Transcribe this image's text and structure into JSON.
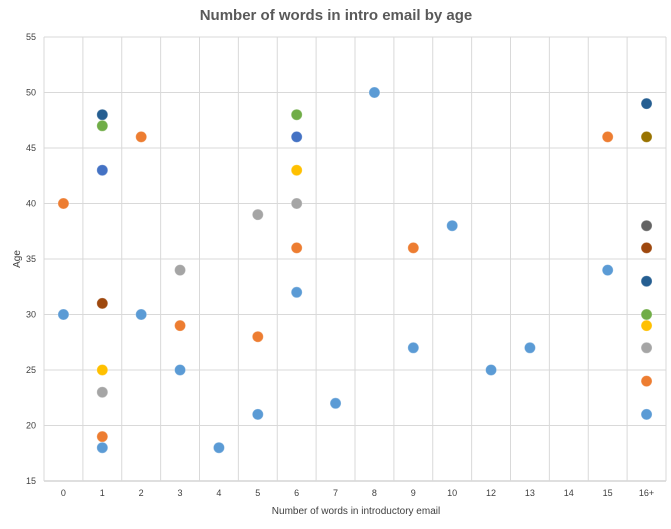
{
  "chart_data": {
    "type": "scatter",
    "title": "Number of words in intro email by age",
    "xlabel": "Number of words in introductory email",
    "ylabel": "Age",
    "categories": [
      "0",
      "1",
      "2",
      "3",
      "4",
      "5",
      "6",
      "7",
      "8",
      "9",
      "10",
      "12",
      "13",
      "14",
      "15",
      "16+"
    ],
    "ylim": [
      15,
      55
    ],
    "yticks": [
      15,
      20,
      25,
      30,
      35,
      40,
      45,
      50,
      55
    ],
    "grid": "on (vertical and horizontal)",
    "legend": "none",
    "colors": {
      "blue_light": "#5b9bd5",
      "orange": "#ed7d31",
      "gray": "#a5a5a5",
      "gold": "#ffc000",
      "blue": "#4472c4",
      "green": "#70ad47",
      "navy": "#255e91",
      "brown": "#9e480e",
      "dark_gray": "#636363",
      "olive": "#997300"
    },
    "points": [
      {
        "x": "0",
        "y": 40,
        "color": "orange"
      },
      {
        "x": "0",
        "y": 30,
        "color": "blue_light"
      },
      {
        "x": "1",
        "y": 48,
        "color": "navy"
      },
      {
        "x": "1",
        "y": 47,
        "color": "green"
      },
      {
        "x": "1",
        "y": 43,
        "color": "blue"
      },
      {
        "x": "1",
        "y": 31,
        "color": "brown"
      },
      {
        "x": "1",
        "y": 25,
        "color": "gold"
      },
      {
        "x": "1",
        "y": 23,
        "color": "gray"
      },
      {
        "x": "1",
        "y": 19,
        "color": "orange"
      },
      {
        "x": "1",
        "y": 18,
        "color": "blue_light"
      },
      {
        "x": "2",
        "y": 46,
        "color": "orange"
      },
      {
        "x": "2",
        "y": 30,
        "color": "blue_light"
      },
      {
        "x": "3",
        "y": 34,
        "color": "gray"
      },
      {
        "x": "3",
        "y": 29,
        "color": "orange"
      },
      {
        "x": "3",
        "y": 25,
        "color": "blue_light"
      },
      {
        "x": "4",
        "y": 18,
        "color": "blue_light"
      },
      {
        "x": "5",
        "y": 39,
        "color": "gray"
      },
      {
        "x": "5",
        "y": 28,
        "color": "orange"
      },
      {
        "x": "5",
        "y": 21,
        "color": "blue_light"
      },
      {
        "x": "6",
        "y": 48,
        "color": "green"
      },
      {
        "x": "6",
        "y": 46,
        "color": "blue"
      },
      {
        "x": "6",
        "y": 43,
        "color": "gold"
      },
      {
        "x": "6",
        "y": 40,
        "color": "gray"
      },
      {
        "x": "6",
        "y": 36,
        "color": "orange"
      },
      {
        "x": "6",
        "y": 32,
        "color": "blue_light"
      },
      {
        "x": "7",
        "y": 22,
        "color": "blue_light"
      },
      {
        "x": "8",
        "y": 50,
        "color": "blue_light"
      },
      {
        "x": "9",
        "y": 36,
        "color": "orange"
      },
      {
        "x": "9",
        "y": 27,
        "color": "blue_light"
      },
      {
        "x": "10",
        "y": 38,
        "color": "blue_light"
      },
      {
        "x": "12",
        "y": 25,
        "color": "blue_light"
      },
      {
        "x": "13",
        "y": 27,
        "color": "blue_light"
      },
      {
        "x": "15",
        "y": 46,
        "color": "orange"
      },
      {
        "x": "15",
        "y": 34,
        "color": "blue_light"
      },
      {
        "x": "16+",
        "y": 49,
        "color": "navy"
      },
      {
        "x": "16+",
        "y": 46,
        "color": "olive"
      },
      {
        "x": "16+",
        "y": 38,
        "color": "dark_gray"
      },
      {
        "x": "16+",
        "y": 36,
        "color": "brown"
      },
      {
        "x": "16+",
        "y": 33,
        "color": "navy"
      },
      {
        "x": "16+",
        "y": 30,
        "color": "green"
      },
      {
        "x": "16+",
        "y": 29,
        "color": "gold"
      },
      {
        "x": "16+",
        "y": 27,
        "color": "gray"
      },
      {
        "x": "16+",
        "y": 24,
        "color": "orange"
      },
      {
        "x": "16+",
        "y": 21,
        "color": "blue_light"
      }
    ]
  }
}
